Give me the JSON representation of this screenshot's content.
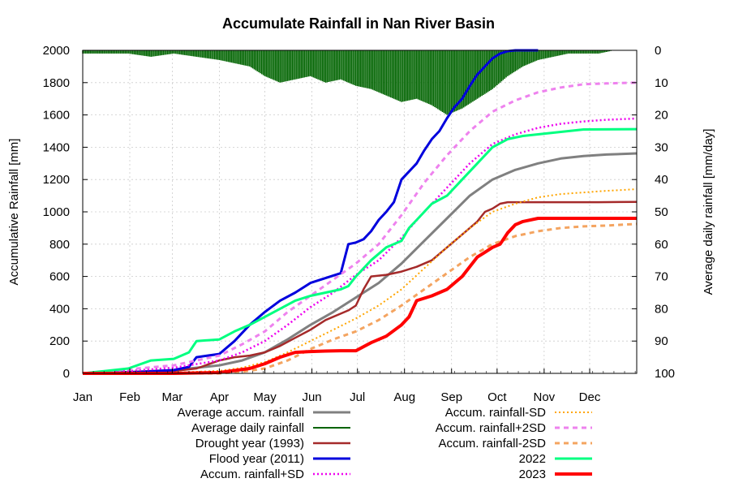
{
  "chart_data": {
    "type": "line",
    "title": "Accumulate Rainfall in Nan River Basin",
    "ylabel": "Accumulative Rainfall [mm]",
    "y2label": "Average daily rainfall [mm/day]",
    "ylim": [
      0,
      2000
    ],
    "y2lim": [
      100,
      0
    ],
    "y2_inverted": true,
    "xlim": [
      0,
      365
    ],
    "grid": true,
    "legend_placement": "bottom",
    "x_tick_labels": [
      "Jan",
      "Feb",
      "Mar",
      "Apr",
      "May",
      "Jun",
      "Jul",
      "Aug",
      "Sep",
      "Oct",
      "Nov",
      "Dec"
    ],
    "x_ticks": [
      0,
      31,
      59,
      90,
      120,
      151,
      181,
      212,
      243,
      273,
      304,
      334
    ],
    "y_ticks": [
      0,
      200,
      400,
      600,
      800,
      1000,
      1200,
      1400,
      1600,
      1800,
      2000
    ],
    "y2_ticks": [
      0,
      10,
      20,
      30,
      40,
      50,
      60,
      70,
      80,
      90,
      100
    ],
    "series": [
      {
        "name": "Average accum. rainfall",
        "color": "#808080",
        "style": "solid",
        "width": 3,
        "axis": "left",
        "x": [
          0,
          30,
          60,
          90,
          105,
          120,
          135,
          150,
          165,
          180,
          195,
          210,
          225,
          240,
          255,
          270,
          285,
          300,
          315,
          330,
          345,
          365
        ],
        "y": [
          0,
          8,
          20,
          50,
          80,
          130,
          210,
          300,
          380,
          470,
          560,
          680,
          820,
          960,
          1100,
          1200,
          1260,
          1300,
          1330,
          1345,
          1355,
          1362
        ]
      },
      {
        "name": "Average daily rainfall",
        "color": "#006400",
        "style": "bars",
        "width": 1,
        "axis": "right",
        "x": [
          0,
          15,
          30,
          45,
          60,
          75,
          90,
          100,
          110,
          120,
          130,
          140,
          150,
          160,
          170,
          180,
          190,
          200,
          210,
          220,
          230,
          240,
          250,
          260,
          270,
          280,
          290,
          300,
          310,
          320,
          330,
          340,
          350,
          360
        ],
        "y": [
          1,
          1,
          1,
          2,
          1,
          2,
          3,
          4,
          5,
          8,
          10,
          9,
          8,
          10,
          9,
          11,
          12,
          14,
          16,
          15,
          17,
          20,
          18,
          15,
          12,
          8,
          5,
          3,
          2,
          1,
          1,
          1,
          0,
          0
        ]
      },
      {
        "name": "Drought year (1993)",
        "color": "#A52A2A",
        "style": "solid",
        "width": 2.5,
        "axis": "left",
        "x": [
          0,
          30,
          60,
          75,
          90,
          100,
          110,
          120,
          130,
          140,
          150,
          160,
          170,
          175,
          180,
          185,
          190,
          200,
          210,
          220,
          230,
          240,
          250,
          260,
          265,
          270,
          275,
          280,
          300,
          320,
          340,
          365
        ],
        "y": [
          0,
          5,
          15,
          30,
          80,
          100,
          110,
          130,
          170,
          220,
          270,
          330,
          370,
          390,
          420,
          520,
          600,
          610,
          630,
          660,
          700,
          780,
          860,
          940,
          1000,
          1020,
          1050,
          1060,
          1060,
          1060,
          1060,
          1062
        ]
      },
      {
        "name": "Flood year (2011)",
        "color": "#0000DD",
        "style": "solid",
        "width": 3,
        "axis": "left",
        "x": [
          0,
          30,
          60,
          70,
          75,
          90,
          100,
          110,
          120,
          130,
          140,
          150,
          160,
          170,
          175,
          180,
          185,
          190,
          195,
          200,
          205,
          210,
          215,
          220,
          225,
          230,
          235,
          240,
          245,
          250,
          255,
          260,
          265,
          270,
          275,
          280,
          285,
          290,
          300
        ],
        "y": [
          0,
          5,
          20,
          40,
          100,
          120,
          200,
          300,
          380,
          450,
          500,
          560,
          590,
          620,
          800,
          810,
          830,
          880,
          950,
          1000,
          1060,
          1200,
          1250,
          1300,
          1380,
          1450,
          1500,
          1580,
          1650,
          1700,
          1780,
          1850,
          1900,
          1950,
          1980,
          1995,
          2000,
          2000,
          2000
        ]
      },
      {
        "name": "Accum. rainfall+SD",
        "color": "#EE00EE",
        "style": "dotted",
        "width": 2.5,
        "axis": "left",
        "x": [
          0,
          30,
          60,
          90,
          105,
          120,
          135,
          150,
          165,
          180,
          195,
          210,
          225,
          240,
          255,
          270,
          285,
          300,
          315,
          330,
          345,
          365
        ],
        "y": [
          0,
          15,
          35,
          80,
          130,
          200,
          300,
          410,
          500,
          610,
          700,
          840,
          1000,
          1150,
          1300,
          1420,
          1480,
          1520,
          1545,
          1560,
          1570,
          1578
        ]
      },
      {
        "name": "Accum. rainfall-SD",
        "color": "#FFA500",
        "style": "dotted",
        "width": 2,
        "axis": "left",
        "x": [
          0,
          30,
          60,
          90,
          105,
          120,
          135,
          150,
          165,
          180,
          195,
          210,
          225,
          240,
          255,
          270,
          285,
          300,
          315,
          330,
          345,
          365
        ],
        "y": [
          0,
          2,
          5,
          15,
          35,
          70,
          130,
          200,
          270,
          340,
          420,
          520,
          650,
          780,
          900,
          1000,
          1050,
          1090,
          1110,
          1120,
          1130,
          1140
        ]
      },
      {
        "name": "Accum. rainfall+2SD",
        "color": "#EE82EE",
        "style": "dashed",
        "width": 3,
        "axis": "left",
        "x": [
          0,
          30,
          60,
          90,
          105,
          120,
          135,
          150,
          165,
          180,
          195,
          210,
          225,
          240,
          255,
          270,
          285,
          300,
          315,
          330,
          345,
          365
        ],
        "y": [
          0,
          25,
          50,
          110,
          180,
          260,
          380,
          480,
          580,
          680,
          800,
          980,
          1180,
          1350,
          1500,
          1620,
          1690,
          1740,
          1770,
          1790,
          1795,
          1800
        ]
      },
      {
        "name": "Accum. rainfall-2SD",
        "color": "#F4A460",
        "style": "dashed",
        "width": 3,
        "axis": "left",
        "x": [
          0,
          30,
          60,
          90,
          105,
          120,
          135,
          150,
          165,
          180,
          195,
          210,
          225,
          240,
          255,
          270,
          285,
          300,
          315,
          330,
          345,
          365
        ],
        "y": [
          0,
          0,
          0,
          0,
          10,
          30,
          80,
          150,
          210,
          260,
          330,
          420,
          520,
          620,
          720,
          800,
          850,
          880,
          900,
          910,
          915,
          925
        ]
      },
      {
        "name": "2022",
        "color": "#00FF80",
        "style": "solid",
        "width": 3,
        "axis": "left",
        "x": [
          0,
          30,
          45,
          60,
          70,
          75,
          90,
          100,
          110,
          120,
          130,
          140,
          150,
          160,
          170,
          175,
          180,
          190,
          200,
          210,
          215,
          220,
          230,
          240,
          250,
          260,
          270,
          280,
          290,
          300,
          330,
          365
        ],
        "y": [
          0,
          30,
          80,
          90,
          130,
          200,
          210,
          260,
          300,
          350,
          400,
          450,
          480,
          500,
          520,
          540,
          600,
          700,
          780,
          820,
          900,
          950,
          1050,
          1100,
          1200,
          1300,
          1400,
          1450,
          1470,
          1480,
          1510,
          1512
        ]
      },
      {
        "name": "2023",
        "color": "#FF0000",
        "style": "solid",
        "width": 4,
        "axis": "left",
        "x": [
          0,
          60,
          90,
          110,
          120,
          130,
          140,
          150,
          160,
          170,
          180,
          190,
          200,
          210,
          215,
          220,
          230,
          240,
          250,
          260,
          265,
          270,
          275,
          280,
          285,
          290,
          300,
          330,
          365
        ],
        "y": [
          0,
          0,
          5,
          30,
          60,
          100,
          130,
          135,
          138,
          140,
          140,
          190,
          230,
          300,
          350,
          450,
          480,
          520,
          600,
          720,
          750,
          780,
          800,
          870,
          920,
          940,
          960,
          960,
          960
        ]
      }
    ]
  }
}
